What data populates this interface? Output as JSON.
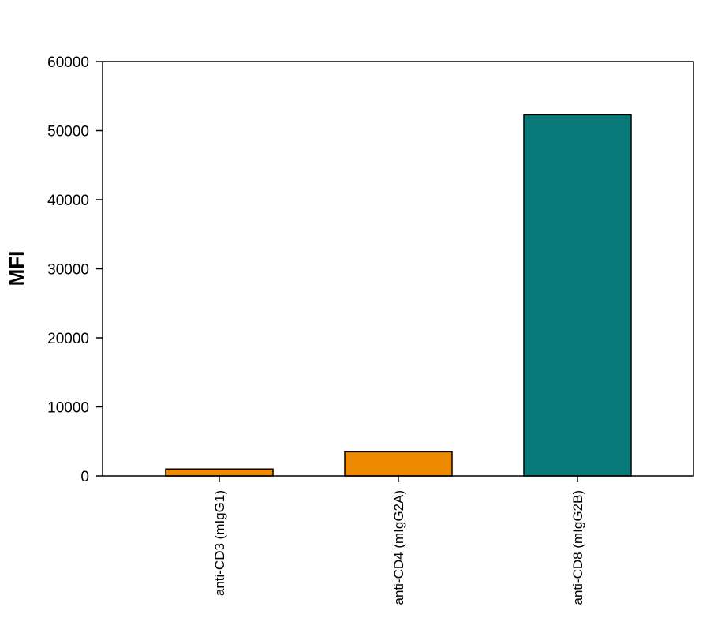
{
  "chart_data": {
    "type": "bar",
    "title": "",
    "xlabel": "",
    "ylabel": "MFI",
    "ylim": [
      0,
      60000
    ],
    "yticks": [
      0,
      10000,
      20000,
      30000,
      40000,
      50000,
      60000
    ],
    "grid": false,
    "legend": "none",
    "categories": [
      "anti-CD3 (mIgG1)",
      "anti-CD4 (mIgG2A)",
      "anti-CD8 (mIgG2B)"
    ],
    "values": [
      1000,
      3500,
      52300
    ],
    "colors": [
      "#ee8a00",
      "#ee8a00",
      "#087a7a"
    ]
  }
}
